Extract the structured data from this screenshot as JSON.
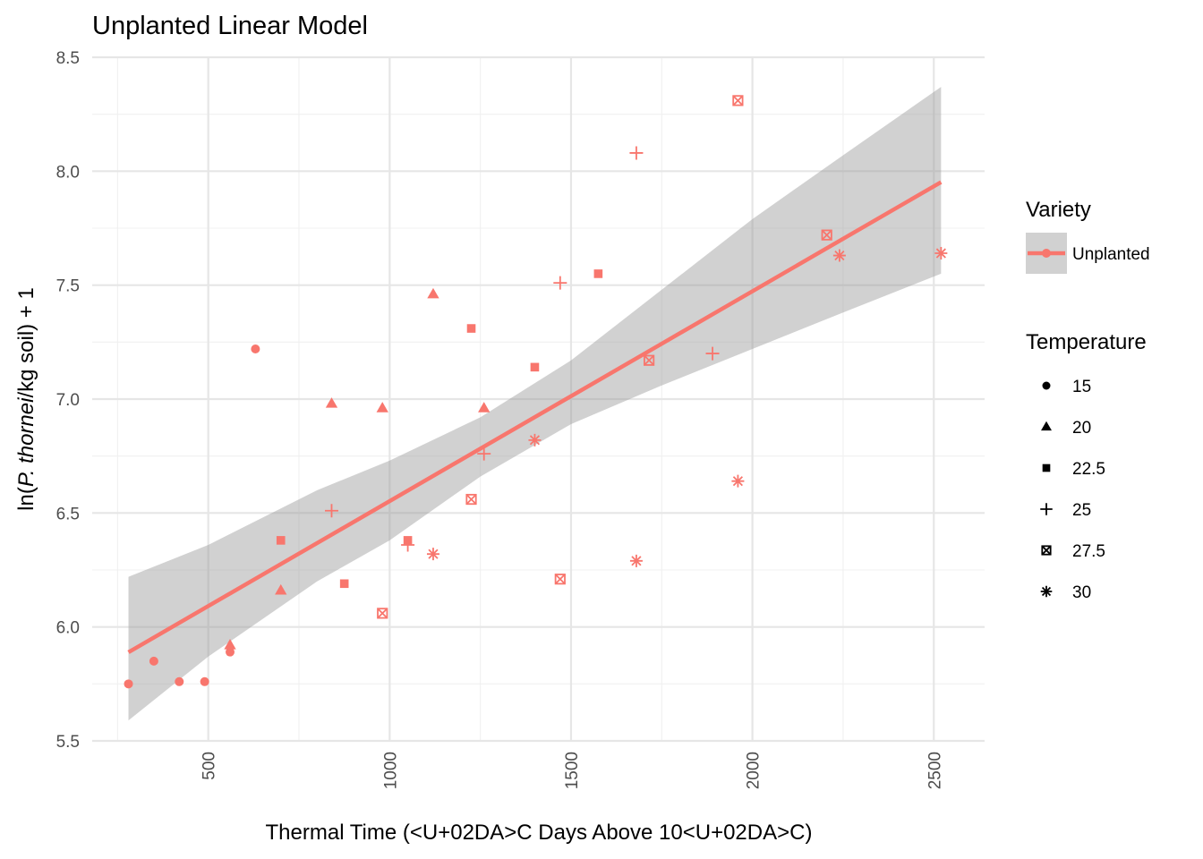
{
  "chart_data": {
    "type": "scatter",
    "title": "Unplanted Linear Model",
    "xlabel": "Thermal Time (<U+02DA>C Days Above 10<U+02DA>C)",
    "ylabel_parts": [
      "ln(",
      "P. thornei",
      "/kg soil) + 1"
    ],
    "xlim": [
      180,
      2640
    ],
    "ylim": [
      5.5,
      8.5
    ],
    "x_ticks": [
      500,
      1000,
      1500,
      2000,
      2500
    ],
    "x_tick_labels": [
      "500",
      "1000",
      "1500",
      "2000",
      "2500"
    ],
    "y_ticks": [
      5.5,
      6.0,
      6.5,
      7.0,
      7.5,
      8.0,
      8.5
    ],
    "y_tick_labels": [
      "5.5",
      "6.0",
      "6.5",
      "7.0",
      "7.5",
      "8.0",
      "8.5"
    ],
    "grid": true,
    "color": "#F8766D",
    "ribbon_color": "#999999",
    "fit": {
      "intercept": 5.6312,
      "slope": 0.000921,
      "x_range": [
        280,
        2520
      ],
      "band": [
        {
          "x": 280,
          "lo": 5.59,
          "hi": 6.22
        },
        {
          "x": 500,
          "lo": 5.87,
          "hi": 6.36
        },
        {
          "x": 800,
          "lo": 6.2,
          "hi": 6.6
        },
        {
          "x": 1000,
          "lo": 6.38,
          "hi": 6.73
        },
        {
          "x": 1250,
          "lo": 6.66,
          "hi": 6.92
        },
        {
          "x": 1500,
          "lo": 6.89,
          "hi": 7.17
        },
        {
          "x": 1750,
          "lo": 7.06,
          "hi": 7.48
        },
        {
          "x": 2000,
          "lo": 7.22,
          "hi": 7.79
        },
        {
          "x": 2250,
          "lo": 7.38,
          "hi": 8.07
        },
        {
          "x": 2520,
          "lo": 7.55,
          "hi": 8.37
        }
      ]
    },
    "points": [
      {
        "x": 280,
        "y": 5.75,
        "temp": "15"
      },
      {
        "x": 350,
        "y": 5.85,
        "temp": "15"
      },
      {
        "x": 420,
        "y": 5.76,
        "temp": "15"
      },
      {
        "x": 490,
        "y": 5.76,
        "temp": "15"
      },
      {
        "x": 560,
        "y": 5.89,
        "temp": "15"
      },
      {
        "x": 630,
        "y": 7.22,
        "temp": "15"
      },
      {
        "x": 560,
        "y": 5.92,
        "temp": "20"
      },
      {
        "x": 700,
        "y": 6.16,
        "temp": "20"
      },
      {
        "x": 840,
        "y": 6.98,
        "temp": "20"
      },
      {
        "x": 980,
        "y": 6.96,
        "temp": "20"
      },
      {
        "x": 1120,
        "y": 7.46,
        "temp": "20"
      },
      {
        "x": 1260,
        "y": 6.96,
        "temp": "20"
      },
      {
        "x": 700,
        "y": 6.38,
        "temp": "22.5"
      },
      {
        "x": 875,
        "y": 6.19,
        "temp": "22.5"
      },
      {
        "x": 1050,
        "y": 6.38,
        "temp": "22.5"
      },
      {
        "x": 1225,
        "y": 7.31,
        "temp": "22.5"
      },
      {
        "x": 1400,
        "y": 7.14,
        "temp": "22.5"
      },
      {
        "x": 1575,
        "y": 7.55,
        "temp": "22.5"
      },
      {
        "x": 840,
        "y": 6.51,
        "temp": "25"
      },
      {
        "x": 1050,
        "y": 6.36,
        "temp": "25"
      },
      {
        "x": 1260,
        "y": 6.76,
        "temp": "25"
      },
      {
        "x": 1470,
        "y": 7.51,
        "temp": "25"
      },
      {
        "x": 1680,
        "y": 8.08,
        "temp": "25"
      },
      {
        "x": 1890,
        "y": 7.2,
        "temp": "25"
      },
      {
        "x": 980,
        "y": 6.06,
        "temp": "27.5"
      },
      {
        "x": 1225,
        "y": 6.56,
        "temp": "27.5"
      },
      {
        "x": 1470,
        "y": 6.21,
        "temp": "27.5"
      },
      {
        "x": 1715,
        "y": 7.17,
        "temp": "27.5"
      },
      {
        "x": 1960,
        "y": 8.31,
        "temp": "27.5"
      },
      {
        "x": 2205,
        "y": 7.72,
        "temp": "27.5"
      },
      {
        "x": 1120,
        "y": 6.32,
        "temp": "30"
      },
      {
        "x": 1400,
        "y": 6.82,
        "temp": "30"
      },
      {
        "x": 1680,
        "y": 6.29,
        "temp": "30"
      },
      {
        "x": 1960,
        "y": 6.64,
        "temp": "30"
      },
      {
        "x": 2240,
        "y": 7.63,
        "temp": "30"
      },
      {
        "x": 2520,
        "y": 7.64,
        "temp": "30"
      }
    ]
  },
  "legend": {
    "variety_title": "Variety",
    "variety_items": [
      {
        "label": "Unplanted"
      }
    ],
    "temperature_title": "Temperature",
    "temperature_items": [
      {
        "label": "15",
        "shape": "circle"
      },
      {
        "label": "20",
        "shape": "triangle"
      },
      {
        "label": "22.5",
        "shape": "square"
      },
      {
        "label": "25",
        "shape": "plus"
      },
      {
        "label": "27.5",
        "shape": "square-cross"
      },
      {
        "label": "30",
        "shape": "asterisk"
      }
    ]
  }
}
